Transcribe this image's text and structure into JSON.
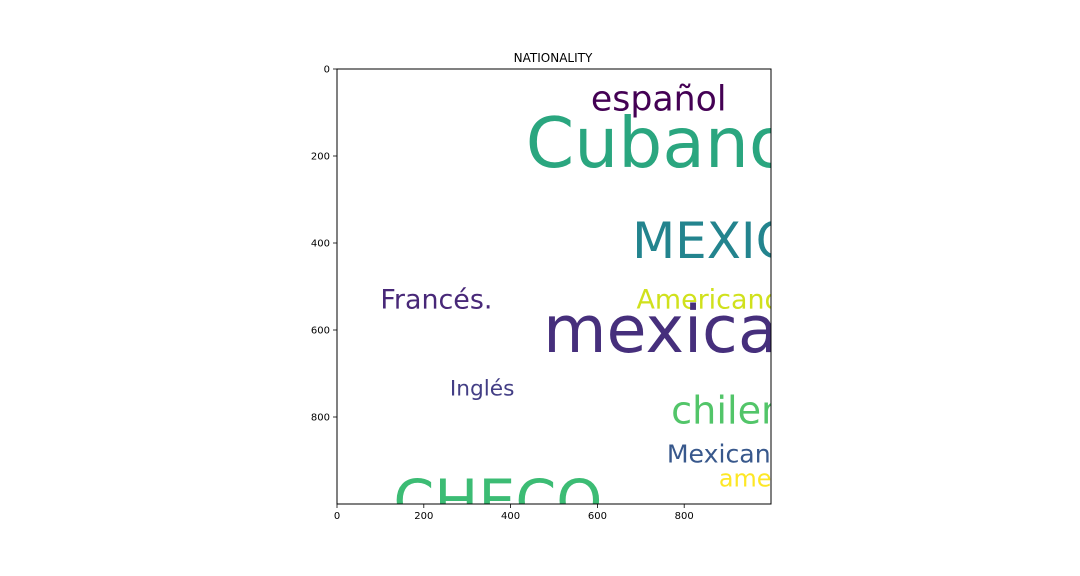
{
  "chart_data": {
    "type": "wordcloud",
    "title": "NATIONALITY",
    "xlabel": "",
    "ylabel": "",
    "xlim": [
      0,
      1000
    ],
    "ylim": [
      1000,
      0
    ],
    "xticks": [
      0,
      200,
      400,
      600,
      800
    ],
    "yticks": [
      0,
      200,
      400,
      600,
      800
    ],
    "grid": false,
    "words": [
      {
        "text": "español",
        "color": "#440154",
        "size": 80,
        "x": 585,
        "y": 95
      },
      {
        "text": "Cubano",
        "color": "#2aa67f",
        "size": 160,
        "x": 435,
        "y": 225
      },
      {
        "text": "MEXICANO",
        "color": "#23848e",
        "size": 115,
        "x": 680,
        "y": 435
      },
      {
        "text": "Francés.",
        "color": "#482878",
        "size": 62,
        "x": 100,
        "y": 550
      },
      {
        "text": "Americano",
        "color": "#d0e11c",
        "size": 62,
        "x": 690,
        "y": 550
      },
      {
        "text": "mexicano",
        "color": "#462f7c",
        "size": 150,
        "x": 475,
        "y": 650
      },
      {
        "text": "Inglés",
        "color": "#433e85",
        "size": 50,
        "x": 260,
        "y": 750
      },
      {
        "text": "chileno",
        "color": "#52c569",
        "size": 88,
        "x": 770,
        "y": 815
      },
      {
        "text": "CHECO",
        "color": "#3cbc74",
        "size": 135,
        "x": 130,
        "y": 1040
      },
      {
        "text": "Mexicano",
        "color": "#38588c",
        "size": 58,
        "x": 760,
        "y": 905
      },
      {
        "text": "americano",
        "color": "#fde725",
        "size": 55,
        "x": 880,
        "y": 960
      }
    ]
  }
}
